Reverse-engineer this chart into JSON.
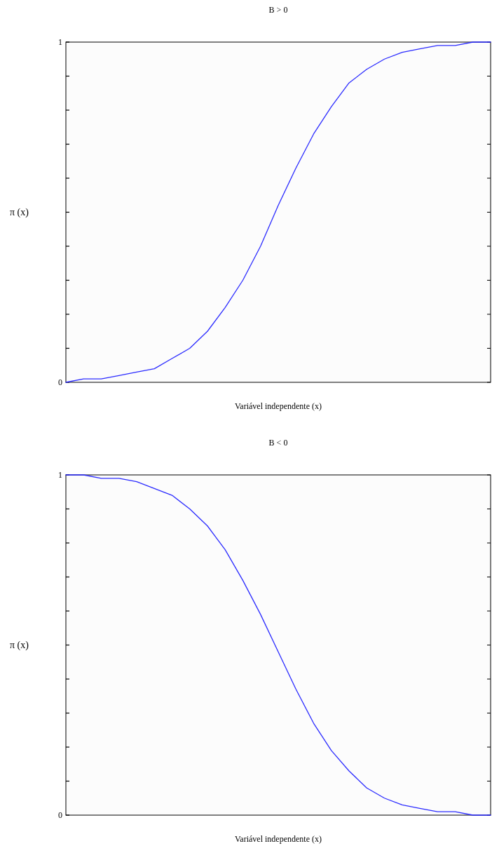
{
  "chart_data": [
    {
      "type": "line",
      "title": "B > 0",
      "xlabel": "Variável independente (x)",
      "ylabel": "π (x)",
      "categories": [
        null,
        null,
        null,
        null,
        null,
        null,
        null,
        null,
        null,
        null,
        null,
        null,
        null,
        null,
        null,
        null,
        null,
        null,
        null,
        null,
        null,
        null,
        null,
        null,
        null
      ],
      "values": [
        0.0,
        0.01,
        0.01,
        0.02,
        0.03,
        0.04,
        0.07,
        0.1,
        0.15,
        0.22,
        0.3,
        0.4,
        0.52,
        0.63,
        0.73,
        0.81,
        0.88,
        0.92,
        0.95,
        0.97,
        0.98,
        0.99,
        0.99,
        1.0,
        1.0
      ],
      "color": "#2b2bff",
      "ylim": [
        0,
        1
      ],
      "yticks": [
        {
          "value": 0,
          "label": "0"
        },
        {
          "value": 0.1,
          "label": null
        },
        {
          "value": 0.2,
          "label": null
        },
        {
          "value": 0.3,
          "label": null
        },
        {
          "value": 0.4,
          "label": null
        },
        {
          "value": 0.5,
          "label": null
        },
        {
          "value": 0.6,
          "label": null
        },
        {
          "value": 0.7,
          "label": null
        },
        {
          "value": 0.8,
          "label": null
        },
        {
          "value": 0.9,
          "label": null
        },
        {
          "value": 1,
          "label": "1"
        }
      ],
      "tick_labels": "y"
    },
    {
      "type": "line",
      "title": "B < 0",
      "xlabel": "Variável independente (x)",
      "ylabel": "π (x)",
      "categories": [
        null,
        null,
        null,
        null,
        null,
        null,
        null,
        null,
        null,
        null,
        null,
        null,
        null,
        null,
        null,
        null,
        null,
        null,
        null,
        null,
        null,
        null,
        null,
        null,
        null
      ],
      "values": [
        1.0,
        1.0,
        0.99,
        0.99,
        0.98,
        0.96,
        0.94,
        0.9,
        0.85,
        0.78,
        0.69,
        0.59,
        0.48,
        0.37,
        0.27,
        0.19,
        0.13,
        0.08,
        0.05,
        0.03,
        0.02,
        0.01,
        0.01,
        0.0,
        0.0
      ],
      "color": "#2b2bff",
      "ylim": [
        0,
        1
      ],
      "yticks": [
        {
          "value": 0,
          "label": "0"
        },
        {
          "value": 0.1,
          "label": null
        },
        {
          "value": 0.2,
          "label": null
        },
        {
          "value": 0.3,
          "label": null
        },
        {
          "value": 0.4,
          "label": null
        },
        {
          "value": 0.5,
          "label": null
        },
        {
          "value": 0.6,
          "label": null
        },
        {
          "value": 0.7,
          "label": null
        },
        {
          "value": 0.8,
          "label": null
        },
        {
          "value": 0.9,
          "label": null
        },
        {
          "value": 1,
          "label": "1"
        }
      ],
      "tick_labels": "y"
    }
  ]
}
